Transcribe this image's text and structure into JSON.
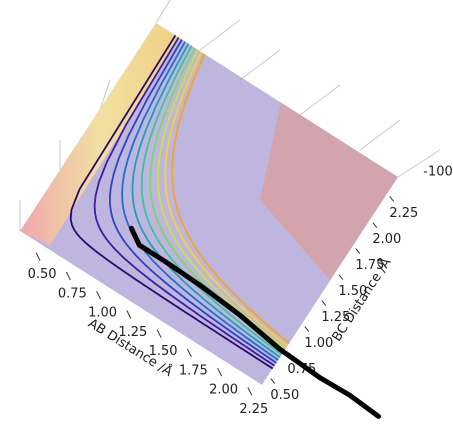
{
  "chart_data": {
    "type": "surface3d",
    "xlabel": "AB Distance /Å",
    "ylabel": "BC Distance /Å",
    "xlim": [
      0.4,
      2.4
    ],
    "ylim": [
      0.4,
      2.4
    ],
    "xticks": [
      {
        "value": 0.5,
        "label": "0.50"
      },
      {
        "value": 0.75,
        "label": "0.75"
      },
      {
        "value": 1.0,
        "label": "1.00"
      },
      {
        "value": 1.25,
        "label": "1.25"
      },
      {
        "value": 1.5,
        "label": "1.50"
      },
      {
        "value": 1.75,
        "label": "1.75"
      },
      {
        "value": 2.0,
        "label": "2.00"
      },
      {
        "value": 2.25,
        "label": "2.25"
      }
    ],
    "yticks": [
      {
        "value": 0.5,
        "label": "0.50"
      },
      {
        "value": 0.75,
        "label": "0.75"
      },
      {
        "value": 1.0,
        "label": "1.00"
      },
      {
        "value": 1.25,
        "label": "1.25"
      },
      {
        "value": 1.5,
        "label": "1.50"
      },
      {
        "value": 1.75,
        "label": "1.75"
      },
      {
        "value": 2.0,
        "label": "2.00"
      },
      {
        "value": 2.25,
        "label": "2.25"
      }
    ],
    "zticks": [
      -100
    ],
    "series": [
      {
        "color": "#000000",
        "x": [
          1.04,
          1.15,
          1.36,
          1.66,
          2.0,
          2.37,
          2.71,
          2.95,
          3.2
        ],
        "y": [
          0.9,
          0.82,
          0.82,
          0.81,
          0.78,
          0.72,
          0.7,
          0.71,
          0.69
        ]
      }
    ]
  }
}
